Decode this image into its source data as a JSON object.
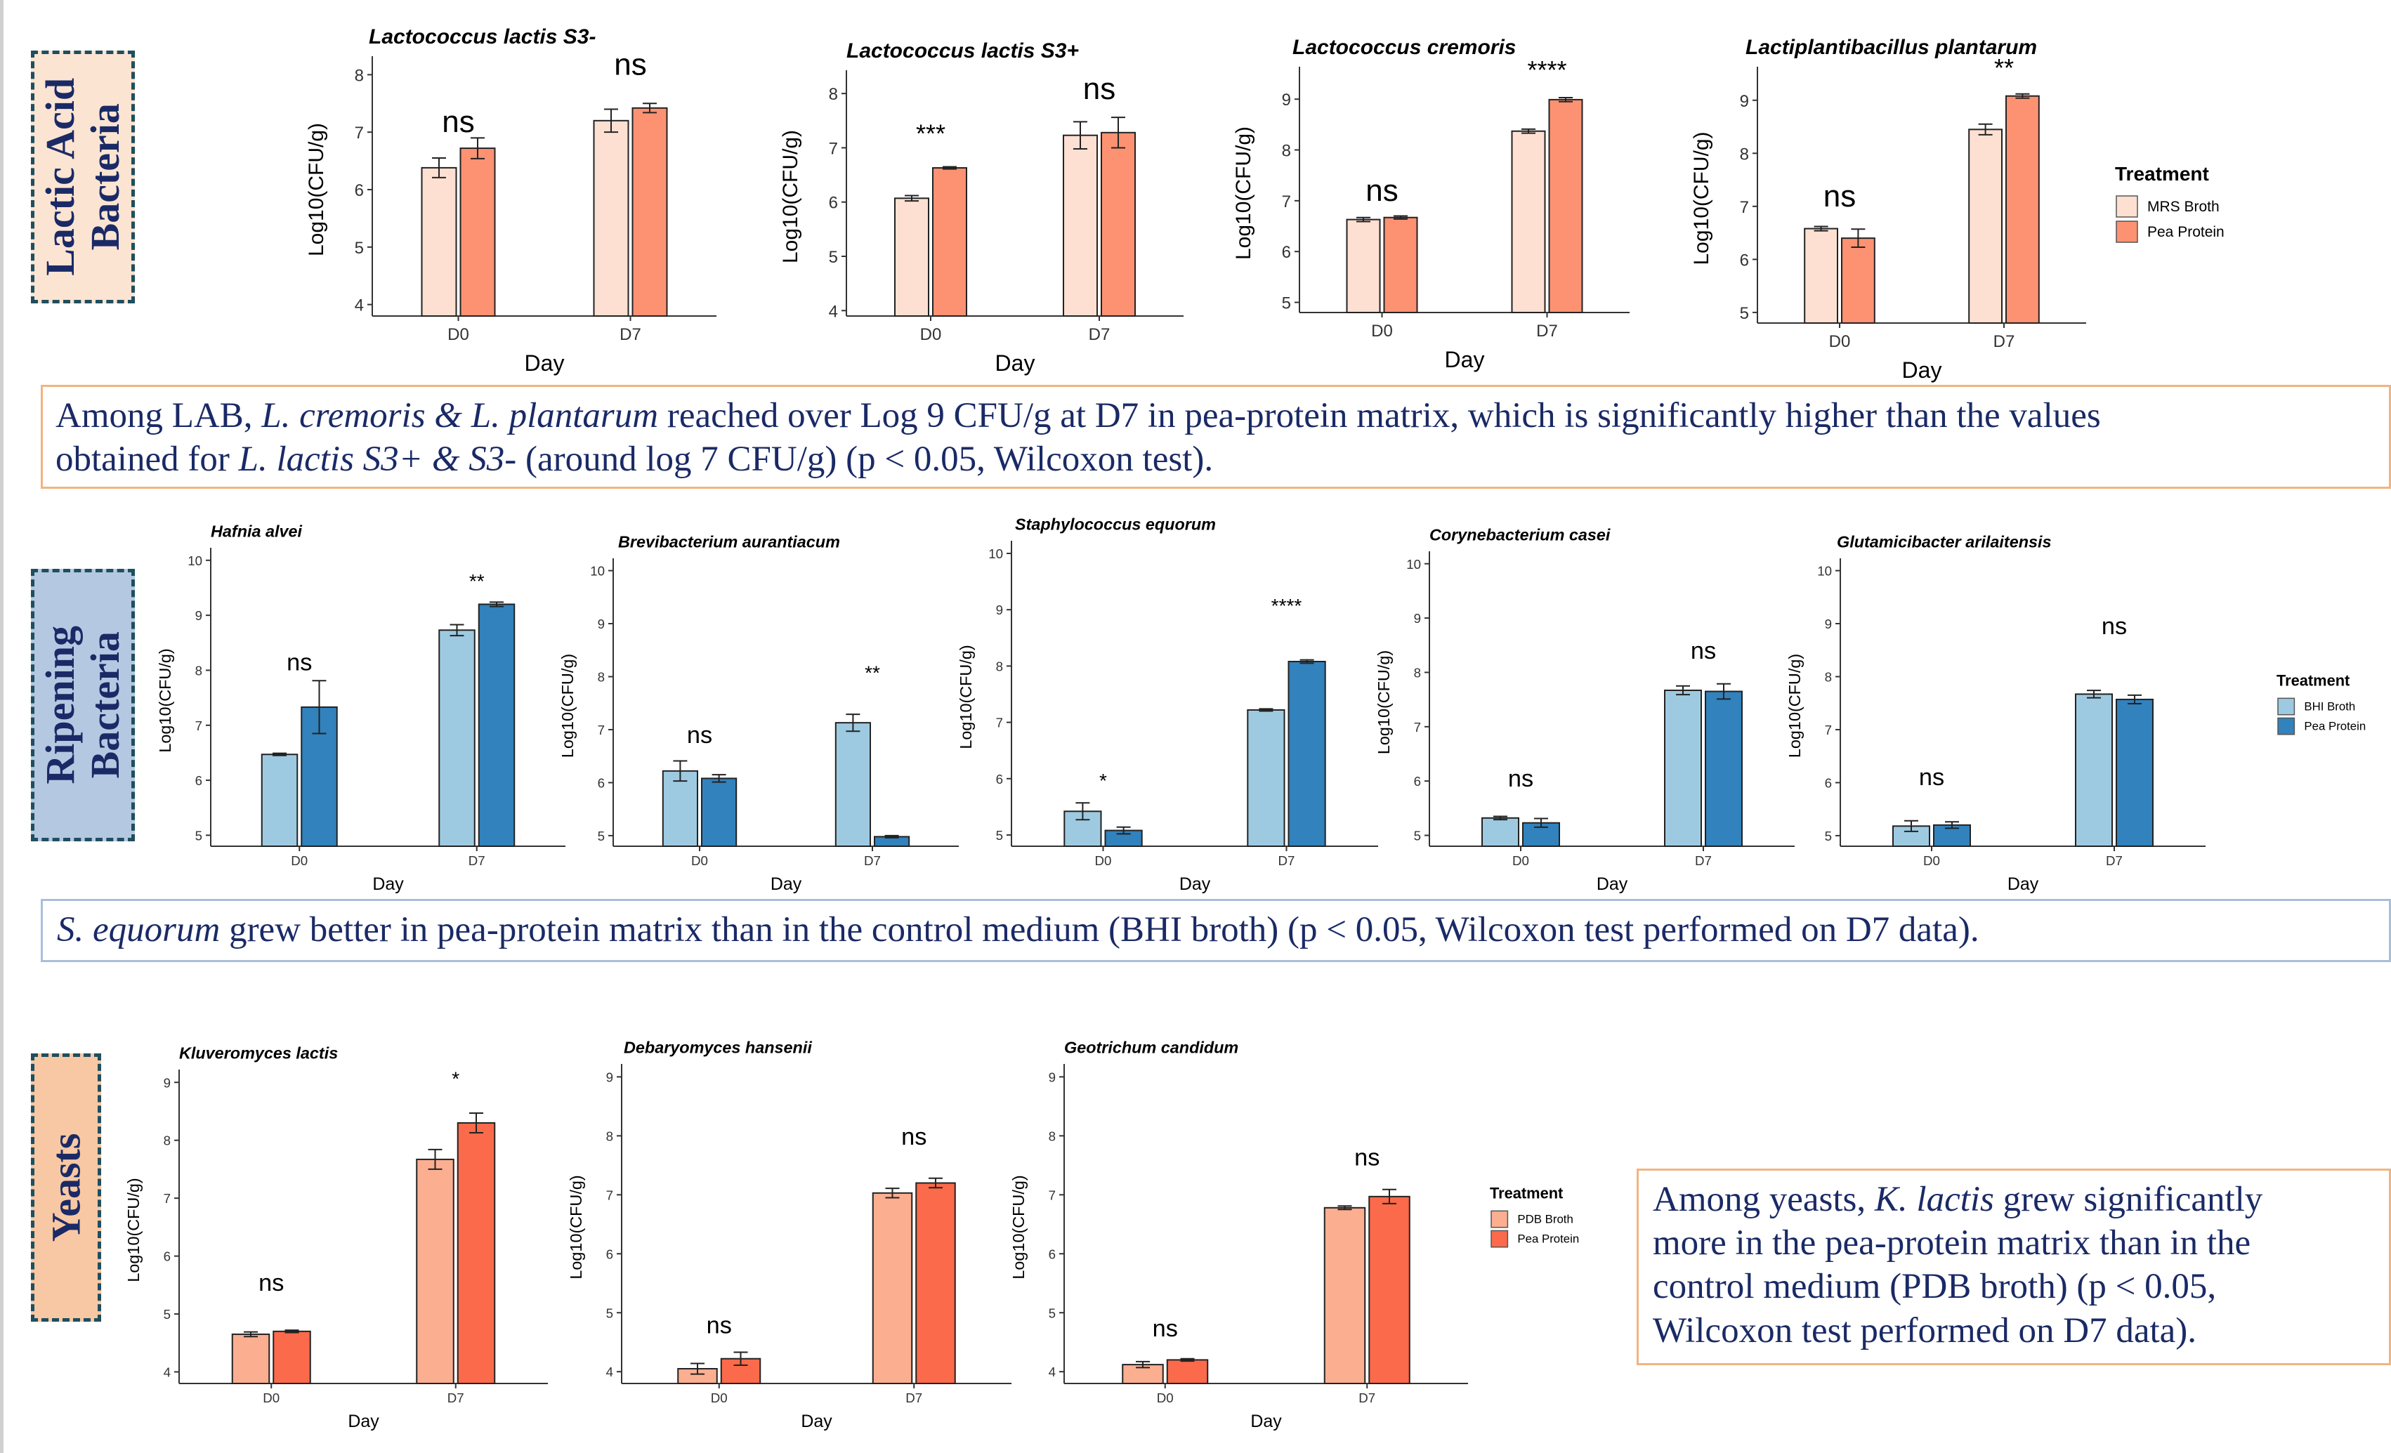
{
  "sections": {
    "lab": {
      "label": "Lactic Acid Bacteria",
      "lines": [
        "Lactic Acid",
        "Bacteria"
      ],
      "bg": "#fbe4d2"
    },
    "ripening": {
      "label": "Ripening Bacteria",
      "lines": [
        "Ripening",
        "Bacteria"
      ],
      "bg": "#b4c8e1"
    },
    "yeasts": {
      "label": "Yeasts",
      "lines": [
        "Yeasts"
      ],
      "bg": "#f7c8a3"
    }
  },
  "notes": {
    "lab": {
      "border_color": "#f0b580",
      "segments": [
        {
          "text": "Among LAB, ",
          "italic": false
        },
        {
          "text": "L. cremoris & L. plantarum",
          "italic": true
        },
        {
          "text": " reached over Log 9 CFU/g at D7 in pea-protein matrix, which is significantly higher than the values",
          "italic": false
        },
        {
          "text": "\n",
          "italic": false
        },
        {
          "text": "obtained for ",
          "italic": false
        },
        {
          "text": "L. lactis S3+ & S3-",
          "italic": true
        },
        {
          "text": " (around log 7 CFU/g) (p < 0.05, Wilcoxon test).",
          "italic": false
        }
      ]
    },
    "ripening": {
      "border_color": "#a8bfd8",
      "segments": [
        {
          "text": "S. equorum",
          "italic": true
        },
        {
          "text": " grew better in pea-protein matrix than in the control medium (BHI broth) (p < 0.05, Wilcoxon test performed on D7 data).",
          "italic": false
        }
      ]
    },
    "yeasts": {
      "border_color": "#f0b580",
      "segments": [
        {
          "text": "Among yeasts, ",
          "italic": false
        },
        {
          "text": "K. lactis",
          "italic": true
        },
        {
          "text": " grew significantly",
          "italic": false
        },
        {
          "text": "\n",
          "italic": false
        },
        {
          "text": "more in the pea-protein matrix than in the",
          "italic": false
        },
        {
          "text": "\n",
          "italic": false
        },
        {
          "text": "control medium (PDB broth) (p < 0.05,",
          "italic": false
        },
        {
          "text": "\n",
          "italic": false
        },
        {
          "text": "Wilcoxon test performed on D7 data).",
          "italic": false
        }
      ]
    }
  },
  "legends": [
    {
      "id": "lab",
      "title": "Treatment",
      "items": [
        {
          "name": "MRS Broth",
          "color": "#fde0d2"
        },
        {
          "name": "Pea Protein",
          "color": "#fc9272"
        }
      ]
    },
    {
      "id": "ripening",
      "title": "Treatment",
      "items": [
        {
          "name": "BHI Broth",
          "color": "#9ecae1"
        },
        {
          "name": "Pea Protein",
          "color": "#3182bd"
        }
      ]
    },
    {
      "id": "yeasts",
      "title": "Treatment",
      "items": [
        {
          "name": "PDB Broth",
          "color": "#fcae91"
        },
        {
          "name": "Pea Protein",
          "color": "#fb6a4a"
        }
      ]
    }
  ],
  "chart_data": [
    {
      "id": "l-lactis-s3minus",
      "group": "lab",
      "type": "bar",
      "title": "Lactococcus lactis S3-",
      "xlabel": "Day",
      "ylabel": "Log10(CFU/g)",
      "ylim": [
        3.8,
        8.2
      ],
      "yticks": [
        4,
        5,
        6,
        7,
        8
      ],
      "categories": [
        "D0",
        "D7"
      ],
      "series": [
        {
          "name": "MRS Broth",
          "color": "#fde0d2",
          "values": [
            6.38,
            7.2
          ],
          "errors": [
            0.17,
            0.2
          ]
        },
        {
          "name": "Pea Protein",
          "color": "#fc9272",
          "values": [
            6.72,
            7.42
          ],
          "errors": [
            0.18,
            0.08
          ]
        }
      ],
      "significance": [
        {
          "label": "ns",
          "y": 7.0
        },
        {
          "label": "ns",
          "y": 8.0
        }
      ]
    },
    {
      "id": "l-lactis-s3plus",
      "group": "lab",
      "type": "bar",
      "title": "Lactococcus lactis S3+",
      "xlabel": "Day",
      "ylabel": "Log10(CFU/g)",
      "ylim": [
        3.9,
        8.3
      ],
      "yticks": [
        4,
        5,
        6,
        7,
        8
      ],
      "categories": [
        "D0",
        "D7"
      ],
      "series": [
        {
          "name": "MRS Broth",
          "color": "#fde0d2",
          "values": [
            6.07,
            7.23
          ],
          "errors": [
            0.05,
            0.25
          ]
        },
        {
          "name": "Pea Protein",
          "color": "#fc9272",
          "values": [
            6.63,
            7.28
          ],
          "errors": [
            0.02,
            0.28
          ]
        }
      ],
      "significance": [
        {
          "label": "***",
          "y": 7.1
        },
        {
          "label": "ns",
          "y": 7.9
        }
      ]
    },
    {
      "id": "l-cremoris",
      "group": "lab",
      "type": "bar",
      "title": "Lactococcus cremoris",
      "xlabel": "Day",
      "ylabel": "Log10(CFU/g)",
      "ylim": [
        4.8,
        9.5
      ],
      "yticks": [
        5,
        6,
        7,
        8,
        9
      ],
      "categories": [
        "D0",
        "D7"
      ],
      "series": [
        {
          "name": "MRS Broth",
          "color": "#fde0d2",
          "values": [
            6.63,
            8.37
          ],
          "errors": [
            0.04,
            0.04
          ]
        },
        {
          "name": "Pea Protein",
          "color": "#fc9272",
          "values": [
            6.67,
            8.99
          ],
          "errors": [
            0.03,
            0.04
          ]
        }
      ],
      "significance": [
        {
          "label": "ns",
          "y": 7.0
        },
        {
          "label": "****",
          "y": 9.4
        }
      ]
    },
    {
      "id": "l-plantarum",
      "group": "lab",
      "type": "bar",
      "title": "Lactiplantibacillus plantarum",
      "xlabel": "Day",
      "ylabel": "Log10(CFU/g)",
      "ylim": [
        4.8,
        9.5
      ],
      "yticks": [
        5,
        6,
        7,
        8,
        9
      ],
      "categories": [
        "D0",
        "D7"
      ],
      "series": [
        {
          "name": "MRS Broth",
          "color": "#fde0d2",
          "values": [
            6.58,
            8.45
          ],
          "errors": [
            0.04,
            0.1
          ]
        },
        {
          "name": "Pea Protein",
          "color": "#fc9272",
          "values": [
            6.4,
            9.08
          ],
          "errors": [
            0.17,
            0.04
          ]
        }
      ],
      "significance": [
        {
          "label": "ns",
          "y": 7.0
        },
        {
          "label": "**",
          "y": 9.45
        }
      ]
    },
    {
      "id": "h-alvei",
      "group": "ripening",
      "type": "bar",
      "title": "Hafnia alvei",
      "xlabel": "Day",
      "ylabel": "Log10(CFU/g)",
      "ylim": [
        4.8,
        10.1
      ],
      "yticks": [
        5,
        6,
        7,
        8,
        9,
        10
      ],
      "categories": [
        "D0",
        "D7"
      ],
      "series": [
        {
          "name": "BHI Broth",
          "color": "#9ecae1",
          "values": [
            6.47,
            8.73
          ],
          "errors": [
            0.02,
            0.1
          ]
        },
        {
          "name": "Pea Protein",
          "color": "#3182bd",
          "values": [
            7.33,
            9.2
          ],
          "errors": [
            0.48,
            0.04
          ]
        }
      ],
      "significance": [
        {
          "label": "ns",
          "y": 8.0
        },
        {
          "label": "**",
          "y": 9.5
        }
      ]
    },
    {
      "id": "b-aurantiacum",
      "group": "ripening",
      "type": "bar",
      "title": "Brevibacterium aurantiacum",
      "xlabel": "Day",
      "ylabel": "Log10(CFU/g)",
      "ylim": [
        4.8,
        10.1
      ],
      "yticks": [
        5,
        6,
        7,
        8,
        9,
        10
      ],
      "categories": [
        "D0",
        "D7"
      ],
      "series": [
        {
          "name": "BHI Broth",
          "color": "#9ecae1",
          "values": [
            6.22,
            7.13
          ],
          "errors": [
            0.19,
            0.16
          ]
        },
        {
          "name": "Pea Protein",
          "color": "#3182bd",
          "values": [
            6.08,
            4.98
          ],
          "errors": [
            0.07,
            0.02
          ]
        }
      ],
      "significance": [
        {
          "label": "ns",
          "y": 6.75
        },
        {
          "label": "**",
          "y": 7.95
        }
      ]
    },
    {
      "id": "s-equorum",
      "group": "ripening",
      "type": "bar",
      "title": "Staphylococcus equorum",
      "xlabel": "Day",
      "ylabel": "Log10(CFU/g)",
      "ylim": [
        4.8,
        10.1
      ],
      "yticks": [
        5,
        6,
        7,
        8,
        9,
        10
      ],
      "categories": [
        "D0",
        "D7"
      ],
      "series": [
        {
          "name": "BHI Broth",
          "color": "#9ecae1",
          "values": [
            5.42,
            7.22
          ],
          "errors": [
            0.15,
            0.02
          ]
        },
        {
          "name": "Pea Protein",
          "color": "#3182bd",
          "values": [
            5.08,
            8.08
          ],
          "errors": [
            0.06,
            0.03
          ]
        }
      ],
      "significance": [
        {
          "label": "*",
          "y": 5.85
        },
        {
          "label": "****",
          "y": 8.95
        }
      ]
    },
    {
      "id": "c-casei",
      "group": "ripening",
      "type": "bar",
      "title": "Corynebacterium casei",
      "xlabel": "Day",
      "ylabel": "Log10(CFU/g)",
      "ylim": [
        4.8,
        10.1
      ],
      "yticks": [
        5,
        6,
        7,
        8,
        9,
        10
      ],
      "categories": [
        "D0",
        "D7"
      ],
      "series": [
        {
          "name": "BHI Broth",
          "color": "#9ecae1",
          "values": [
            5.32,
            7.67
          ],
          "errors": [
            0.03,
            0.08
          ]
        },
        {
          "name": "Pea Protein",
          "color": "#3182bd",
          "values": [
            5.23,
            7.65
          ],
          "errors": [
            0.08,
            0.14
          ]
        }
      ],
      "significance": [
        {
          "label": "ns",
          "y": 5.9
        },
        {
          "label": "ns",
          "y": 8.25
        }
      ]
    },
    {
      "id": "g-arilaitensis",
      "group": "ripening",
      "type": "bar",
      "title": "Glutamicibacter arilaitensis",
      "xlabel": "Day",
      "ylabel": "Log10(CFU/g)",
      "ylim": [
        4.8,
        10.1
      ],
      "yticks": [
        5,
        6,
        7,
        8,
        9,
        10
      ],
      "categories": [
        "D0",
        "D7"
      ],
      "series": [
        {
          "name": "BHI Broth",
          "color": "#9ecae1",
          "values": [
            5.18,
            7.67
          ],
          "errors": [
            0.1,
            0.07
          ]
        },
        {
          "name": "Pea Protein",
          "color": "#3182bd",
          "values": [
            5.2,
            7.57
          ],
          "errors": [
            0.06,
            0.08
          ]
        }
      ],
      "significance": [
        {
          "label": "ns",
          "y": 5.95
        },
        {
          "label": "ns",
          "y": 8.8
        }
      ]
    },
    {
      "id": "k-lactis",
      "group": "yeasts",
      "type": "bar",
      "title": "Kluveromyces lactis",
      "xlabel": "Day",
      "ylabel": "Log10(CFU/g)",
      "ylim": [
        3.8,
        9.1
      ],
      "yticks": [
        4,
        5,
        6,
        7,
        8,
        9
      ],
      "categories": [
        "D0",
        "D7"
      ],
      "series": [
        {
          "name": "PDB Broth",
          "color": "#fcae91",
          "values": [
            4.65,
            7.67
          ],
          "errors": [
            0.04,
            0.17
          ]
        },
        {
          "name": "Pea Protein",
          "color": "#fb6a4a",
          "values": [
            4.7,
            8.3
          ],
          "errors": [
            0.02,
            0.17
          ]
        }
      ],
      "significance": [
        {
          "label": "ns",
          "y": 5.4
        },
        {
          "label": "*",
          "y": 8.95
        }
      ]
    },
    {
      "id": "d-hansenii",
      "group": "yeasts",
      "type": "bar",
      "title": "Debaryomyces hansenii",
      "xlabel": "Day",
      "ylabel": "Log10(CFU/g)",
      "ylim": [
        3.8,
        9.1
      ],
      "yticks": [
        4,
        5,
        6,
        7,
        8,
        9
      ],
      "categories": [
        "D0",
        "D7"
      ],
      "series": [
        {
          "name": "PDB Broth",
          "color": "#fcae91",
          "values": [
            4.05,
            7.03
          ],
          "errors": [
            0.09,
            0.08
          ]
        },
        {
          "name": "Pea Protein",
          "color": "#fb6a4a",
          "values": [
            4.22,
            7.2
          ],
          "errors": [
            0.11,
            0.08
          ]
        }
      ],
      "significance": [
        {
          "label": "ns",
          "y": 4.65
        },
        {
          "label": "ns",
          "y": 7.85
        }
      ]
    },
    {
      "id": "g-candidum",
      "group": "yeasts",
      "type": "bar",
      "title": "Geotrichum candidum",
      "xlabel": "Day",
      "ylabel": "Log10(CFU/g)",
      "ylim": [
        3.8,
        9.1
      ],
      "yticks": [
        4,
        5,
        6,
        7,
        8,
        9
      ],
      "categories": [
        "D0",
        "D7"
      ],
      "series": [
        {
          "name": "PDB Broth",
          "color": "#fcae91",
          "values": [
            4.12,
            6.78
          ],
          "errors": [
            0.05,
            0.03
          ]
        },
        {
          "name": "Pea Protein",
          "color": "#fb6a4a",
          "values": [
            4.2,
            6.97
          ],
          "errors": [
            0.02,
            0.12
          ]
        }
      ],
      "significance": [
        {
          "label": "ns",
          "y": 4.6
        },
        {
          "label": "ns",
          "y": 7.5
        }
      ]
    }
  ]
}
